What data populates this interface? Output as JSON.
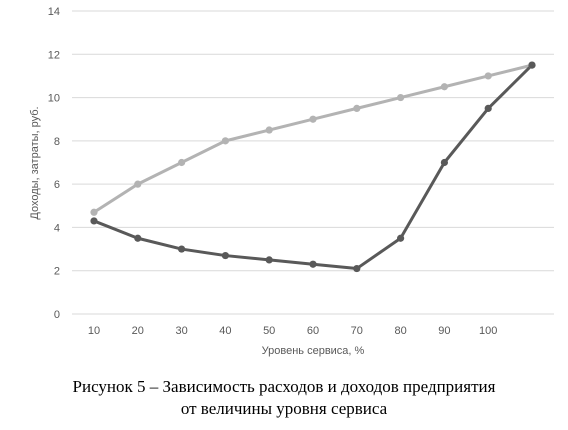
{
  "chart_data": {
    "type": "line",
    "categories": [
      "10",
      "20",
      "30",
      "40",
      "50",
      "60",
      "70",
      "80",
      "90",
      "100"
    ],
    "x": [
      10,
      20,
      30,
      40,
      50,
      60,
      70,
      80,
      90,
      100,
      110
    ],
    "series": [
      {
        "color": "#b3b3b3",
        "values": [
          4.7,
          6.0,
          7.0,
          8.0,
          8.5,
          9.0,
          9.5,
          10.0,
          10.5,
          11.0,
          11.5
        ]
      },
      {
        "color": "#595959",
        "values": [
          4.3,
          3.5,
          3.0,
          2.7,
          2.5,
          2.3,
          2.1,
          3.5,
          7.0,
          9.5,
          11.5
        ]
      }
    ],
    "yticks": [
      0,
      2,
      4,
      6,
      8,
      10,
      12,
      14
    ],
    "ylim": [
      0,
      14
    ],
    "xlabel": "Уровень сервиса, %",
    "ylabel": "Доходы, затраты, руб.",
    "grid": true,
    "legend": "none"
  },
  "caption": {
    "line1": "Рисунок 5 – Зависимость расходов и доходов предприятия",
    "line2": "от величины уровня сервиса"
  }
}
